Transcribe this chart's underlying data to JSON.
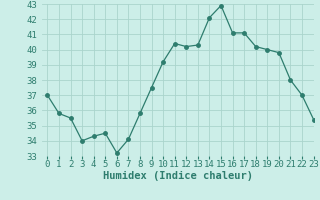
{
  "x": [
    0,
    1,
    2,
    3,
    4,
    5,
    6,
    7,
    8,
    9,
    10,
    11,
    12,
    13,
    14,
    15,
    16,
    17,
    18,
    19,
    20,
    21,
    22,
    23
  ],
  "y": [
    37,
    35.8,
    35.5,
    34.0,
    34.3,
    34.5,
    33.2,
    34.1,
    35.8,
    37.5,
    39.2,
    40.4,
    40.2,
    40.3,
    42.1,
    42.9,
    41.1,
    41.1,
    40.2,
    40.0,
    39.8,
    38.0,
    37.0,
    35.4
  ],
  "xlabel": "Humidex (Indice chaleur)",
  "ylim": [
    33,
    43
  ],
  "xlim": [
    -0.5,
    23
  ],
  "yticks": [
    33,
    34,
    35,
    36,
    37,
    38,
    39,
    40,
    41,
    42,
    43
  ],
  "xticks": [
    0,
    1,
    2,
    3,
    4,
    5,
    6,
    7,
    8,
    9,
    10,
    11,
    12,
    13,
    14,
    15,
    16,
    17,
    18,
    19,
    20,
    21,
    22,
    23
  ],
  "line_color": "#2e7d6e",
  "marker": "o",
  "marker_size": 2.5,
  "bg_color": "#cceee8",
  "grid_color": "#aad4cc",
  "label_fontsize": 7.5,
  "tick_fontsize": 6.5
}
